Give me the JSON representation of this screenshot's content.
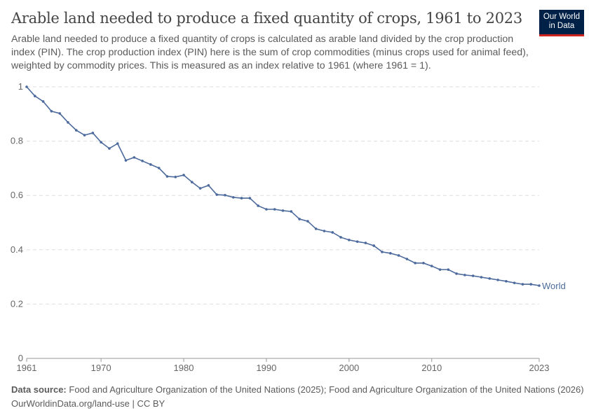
{
  "header": {
    "title": "Arable land needed to produce a fixed quantity of crops, 1961 to 2023",
    "subtitle": "Arable land needed to produce a fixed quantity of crops is calculated as arable land divided by the crop production index (PIN). The crop production index (PIN) here is the sum of crop commodities (minus crops used for animal feed), weighted by commodity prices. This is measured as an index relative to 1961 (where 1961 = 1).",
    "logo": "Our World in Data"
  },
  "footer": {
    "source_label": "Data source:",
    "source": "Food and Agriculture Organization of the United Nations (2025); Food and Agriculture Organization of the United Nations (2026)",
    "url": "OurWorldinData.org/land-use | CC BY"
  },
  "colors": {
    "series": "#4c6a9c",
    "grid": "#dddddd",
    "logo_bg": "#002147",
    "logo_accent": "#ce261e"
  },
  "chart_data": {
    "type": "line",
    "title": "Arable land needed to produce a fixed quantity of crops, 1961 to 2023",
    "xlim": [
      1961,
      2023
    ],
    "ylim": [
      0,
      1
    ],
    "xticks": [
      "1961",
      "1970",
      "1980",
      "1990",
      "2000",
      "2010",
      "2023"
    ],
    "yticks": [
      "0",
      "0.2",
      "0.4",
      "0.6",
      "0.8",
      "1"
    ],
    "grid": "horizontal dashed",
    "legend": "end-of-line label",
    "series": [
      {
        "name": "World",
        "x": [
          1961,
          1962,
          1963,
          1964,
          1965,
          1966,
          1967,
          1968,
          1969,
          1970,
          1971,
          1972,
          1973,
          1974,
          1975,
          1976,
          1977,
          1978,
          1979,
          1980,
          1981,
          1982,
          1983,
          1984,
          1985,
          1986,
          1987,
          1988,
          1989,
          1990,
          1991,
          1992,
          1993,
          1994,
          1995,
          1996,
          1997,
          1998,
          1999,
          2000,
          2001,
          2002,
          2003,
          2004,
          2005,
          2006,
          2007,
          2008,
          2009,
          2010,
          2011,
          2012,
          2013,
          2014,
          2015,
          2016,
          2017,
          2018,
          2019,
          2020,
          2021,
          2022,
          2023
        ],
        "values": [
          1.0,
          0.966,
          0.946,
          0.91,
          0.902,
          0.869,
          0.84,
          0.822,
          0.83,
          0.796,
          0.773,
          0.791,
          0.729,
          0.74,
          0.727,
          0.714,
          0.701,
          0.67,
          0.668,
          0.675,
          0.649,
          0.626,
          0.637,
          0.603,
          0.601,
          0.593,
          0.59,
          0.59,
          0.562,
          0.549,
          0.549,
          0.544,
          0.541,
          0.513,
          0.505,
          0.477,
          0.469,
          0.464,
          0.446,
          0.436,
          0.43,
          0.425,
          0.415,
          0.392,
          0.387,
          0.379,
          0.366,
          0.351,
          0.351,
          0.34,
          0.327,
          0.327,
          0.312,
          0.307,
          0.304,
          0.299,
          0.294,
          0.289,
          0.284,
          0.278,
          0.273,
          0.273,
          0.268
        ]
      }
    ]
  }
}
